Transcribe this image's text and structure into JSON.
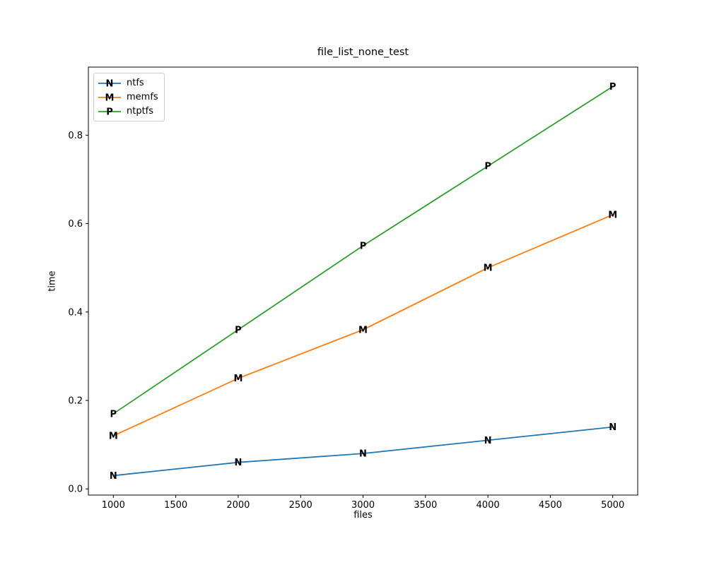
{
  "chart_data": {
    "type": "line",
    "title": "file_list_none_test",
    "xlabel": "files",
    "ylabel": "time",
    "x": [
      1000,
      2000,
      3000,
      4000,
      5000
    ],
    "series": [
      {
        "name": "ntfs",
        "marker": "N",
        "color": "#1f77b4",
        "values": [
          0.03,
          0.06,
          0.08,
          0.11,
          0.14
        ]
      },
      {
        "name": "memfs",
        "marker": "M",
        "color": "#ff7f0e",
        "values": [
          0.12,
          0.25,
          0.36,
          0.5,
          0.62
        ]
      },
      {
        "name": "ntptfs",
        "marker": "P",
        "color": "#2ca02c",
        "values": [
          0.17,
          0.36,
          0.55,
          0.73,
          0.91
        ]
      }
    ],
    "x_ticks": [
      "1000",
      "1500",
      "2000",
      "2500",
      "3000",
      "3500",
      "4000",
      "4500",
      "5000"
    ],
    "x_tick_values": [
      1000,
      1500,
      2000,
      2500,
      3000,
      3500,
      4000,
      4500,
      5000
    ],
    "y_ticks": [
      "0.0",
      "0.2",
      "0.4",
      "0.6",
      "0.8"
    ],
    "y_tick_values": [
      0.0,
      0.2,
      0.4,
      0.6,
      0.8
    ],
    "xlim": [
      800,
      5200
    ],
    "ylim": [
      -0.014,
      0.954
    ],
    "grid": false,
    "legend_position": "upper left",
    "spine_color": "#000000",
    "background_color": "#ffffff"
  }
}
